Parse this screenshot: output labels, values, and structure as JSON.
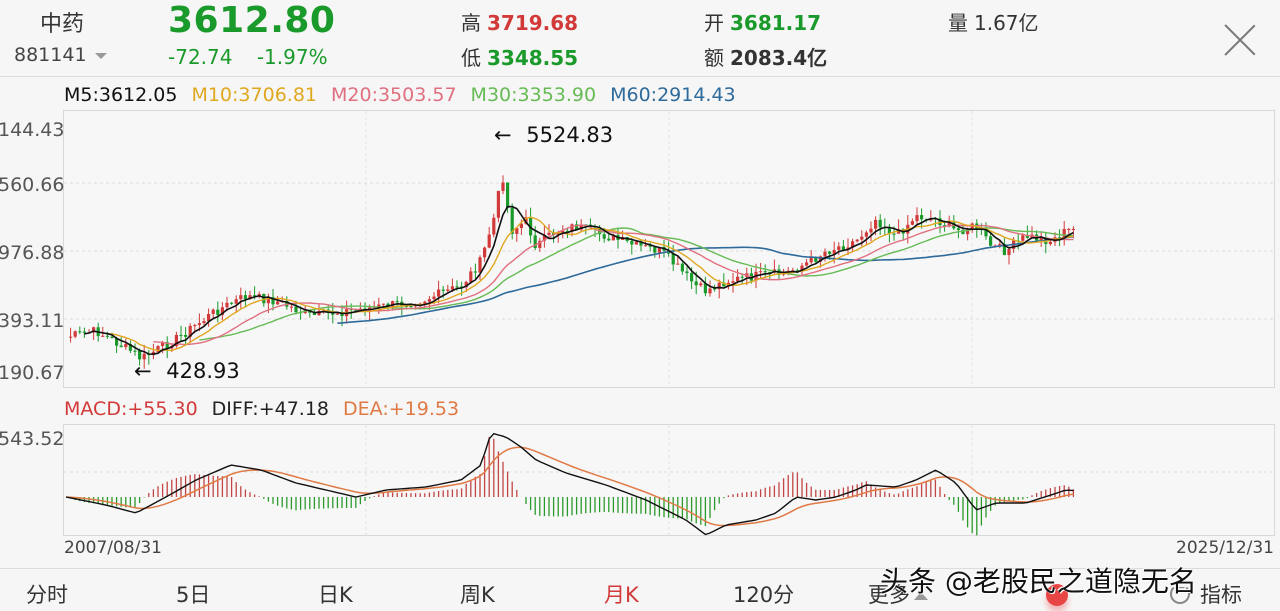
{
  "header": {
    "name": "中药",
    "code": "881141",
    "price": "3612.80",
    "change": "-72.74",
    "change_pct": "-1.97%",
    "high_label": "高",
    "high": "3719.68",
    "low_label": "低",
    "low": "3348.55",
    "open_label": "开",
    "open": "3681.17",
    "amount_label": "额",
    "amount": "2083.4亿",
    "volume_label": "量",
    "volume": "1.67亿",
    "close_icon": "close-icon"
  },
  "ma_legend": {
    "m5": "M5:3612.05",
    "m10": "M10:3706.81",
    "m20": "M20:3503.57",
    "m30": "M30:3353.90",
    "m60": "M60:2914.43"
  },
  "colors": {
    "up": "#d23a3a",
    "down": "#1a9a2a",
    "m5": "#111111",
    "m10": "#e0a820",
    "m20": "#e07080",
    "m30": "#66bb55",
    "m60": "#2e6a9a",
    "dea": "#e07a45"
  },
  "main_chart": {
    "y_labels": [
      "144.43",
      "560.66",
      "976.88",
      "393.11",
      "190.67"
    ],
    "annotation_high": "5524.83",
    "annotation_low": "428.93"
  },
  "macd_legend": {
    "macd": "MACD:+55.30",
    "diff": "DIFF:+47.18",
    "dea": "DEA:+19.53"
  },
  "macd_chart": {
    "y_label": "543.52"
  },
  "dates": {
    "start": "2007/08/31",
    "end": "2025/12/31"
  },
  "tabs": [
    {
      "label": "分时",
      "active": false
    },
    {
      "label": "5日",
      "active": false
    },
    {
      "label": "日K",
      "active": false
    },
    {
      "label": "周K",
      "active": false
    },
    {
      "label": "月K",
      "active": true
    },
    {
      "label": "120分",
      "active": false
    },
    {
      "label": "更多",
      "active": false
    },
    {
      "label": "指标",
      "active": false
    }
  ],
  "watermark": "头条 @老股民之道隐无名",
  "chart_data": {
    "type": "candlestick",
    "title": "中药 881141 月K",
    "x_range": [
      "2007/08/31",
      "2025/12/31"
    ],
    "y_tick_labels": [
      "144.43",
      "560.66",
      "976.88",
      "393.11",
      "190.67"
    ],
    "annotations": [
      {
        "label": "5524.83",
        "type": "high"
      },
      {
        "label": "428.93",
        "type": "low"
      }
    ],
    "series": [
      {
        "name": "M5",
        "last": 3612.05
      },
      {
        "name": "M10",
        "last": 3706.81
      },
      {
        "name": "M20",
        "last": 3503.57
      },
      {
        "name": "M30",
        "last": 3353.9
      },
      {
        "name": "M60",
        "last": 2914.43
      }
    ],
    "indicator": {
      "name": "MACD",
      "MACD": 55.3,
      "DIFF": 47.18,
      "DEA": 19.53,
      "y_top_label": "543.52"
    }
  }
}
